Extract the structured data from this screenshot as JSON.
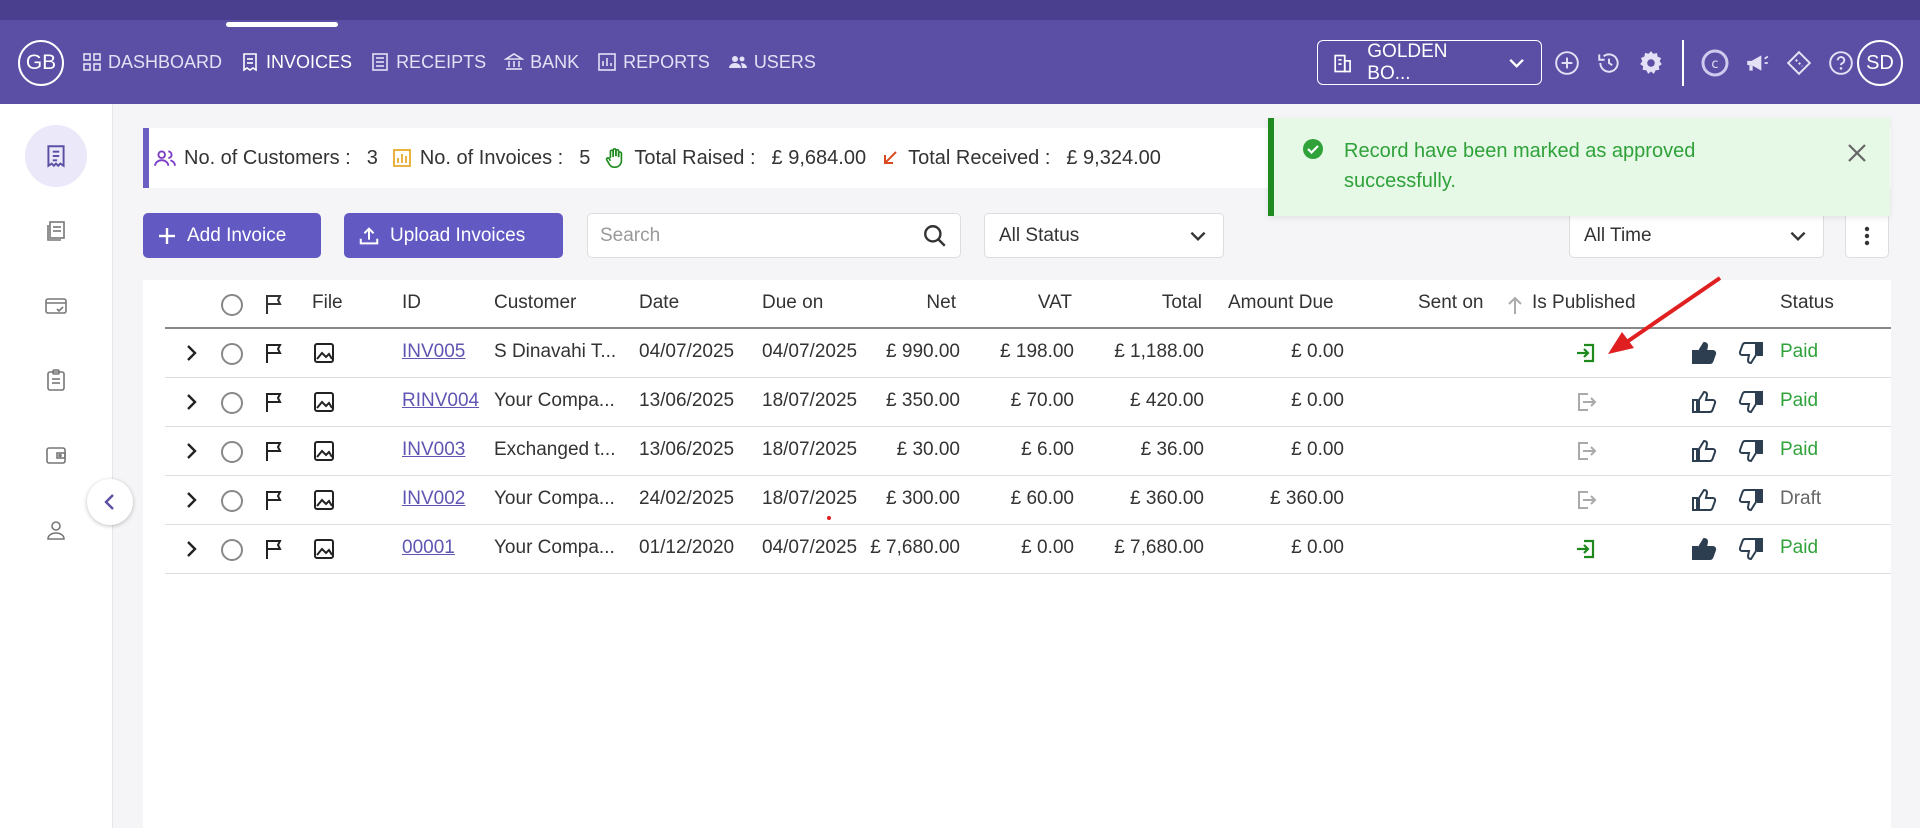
{
  "topbar": {
    "logo": "GB",
    "nav": [
      {
        "label": "DASHBOARD",
        "icon": "grid-icon"
      },
      {
        "label": "INVOICES",
        "icon": "invoice-icon"
      },
      {
        "label": "RECEIPTS",
        "icon": "receipt-icon"
      },
      {
        "label": "BANK",
        "icon": "bank-icon"
      },
      {
        "label": "REPORTS",
        "icon": "chart-icon"
      },
      {
        "label": "USERS",
        "icon": "users-icon"
      }
    ],
    "company": "GOLDEN BO...",
    "avatar": "SD"
  },
  "stats": {
    "customers_label": "No. of Customers :",
    "customers_value": "3",
    "invoices_label": "No. of Invoices :",
    "invoices_value": "5",
    "raised_label": "Total Raised :",
    "raised_value": "£ 9,684.00",
    "received_label": "Total Received :",
    "received_value": "£ 9,324.00"
  },
  "toolbar": {
    "add_label": "Add Invoice",
    "upload_label": "Upload Invoices",
    "search_placeholder": "Search",
    "status_filter": "All Status",
    "time_filter": "All Time"
  },
  "table": {
    "headers": {
      "file": "File",
      "id": "ID",
      "customer": "Customer",
      "date": "Date",
      "due": "Due on",
      "net": "Net",
      "vat": "VAT",
      "total": "Total",
      "amount_due": "Amount Due",
      "sent_on": "Sent on",
      "published": "Is Published",
      "status": "Status"
    },
    "rows": [
      {
        "id": "INV005",
        "customer": "S Dinavahi T...",
        "date": "04/07/2025",
        "due": "04/07/2025",
        "net": "£ 990.00",
        "vat": "£ 198.00",
        "total": "£ 1,188.00",
        "amount_due": "£ 0.00",
        "published": true,
        "approved": true,
        "status": "Paid"
      },
      {
        "id": "RINV004",
        "customer": "Your Compa...",
        "date": "13/06/2025",
        "due": "18/07/2025",
        "net": "£ 350.00",
        "vat": "£ 70.00",
        "total": "£ 420.00",
        "amount_due": "£ 0.00",
        "published": false,
        "approved": false,
        "status": "Paid"
      },
      {
        "id": "INV003",
        "customer": "Exchanged t...",
        "date": "13/06/2025",
        "due": "18/07/2025",
        "net": "£ 30.00",
        "vat": "£ 6.00",
        "total": "£ 36.00",
        "amount_due": "£ 0.00",
        "published": false,
        "approved": false,
        "status": "Paid"
      },
      {
        "id": "INV002",
        "customer": "Your Compa...",
        "date": "24/02/2025",
        "due": "18/07/2025",
        "net": "£ 300.00",
        "vat": "£ 60.00",
        "total": "£ 360.00",
        "amount_due": "£ 360.00",
        "published": false,
        "approved": false,
        "status": "Draft"
      },
      {
        "id": "00001",
        "customer": "Your Compa...",
        "date": "01/12/2020",
        "due": "04/07/2025",
        "net": "£ 7,680.00",
        "vat": "£ 0.00",
        "total": "£ 7,680.00",
        "amount_due": "£ 0.00",
        "published": true,
        "approved": true,
        "status": "Paid"
      }
    ]
  },
  "toast": {
    "message": "Record have been marked as approved successfully."
  },
  "colors": {
    "brand": "#5a4fa4",
    "primary_button": "#6259c3",
    "paid": "#2fa23a",
    "published": "#1e8a1e",
    "unpublished": "#aaaaaa"
  }
}
